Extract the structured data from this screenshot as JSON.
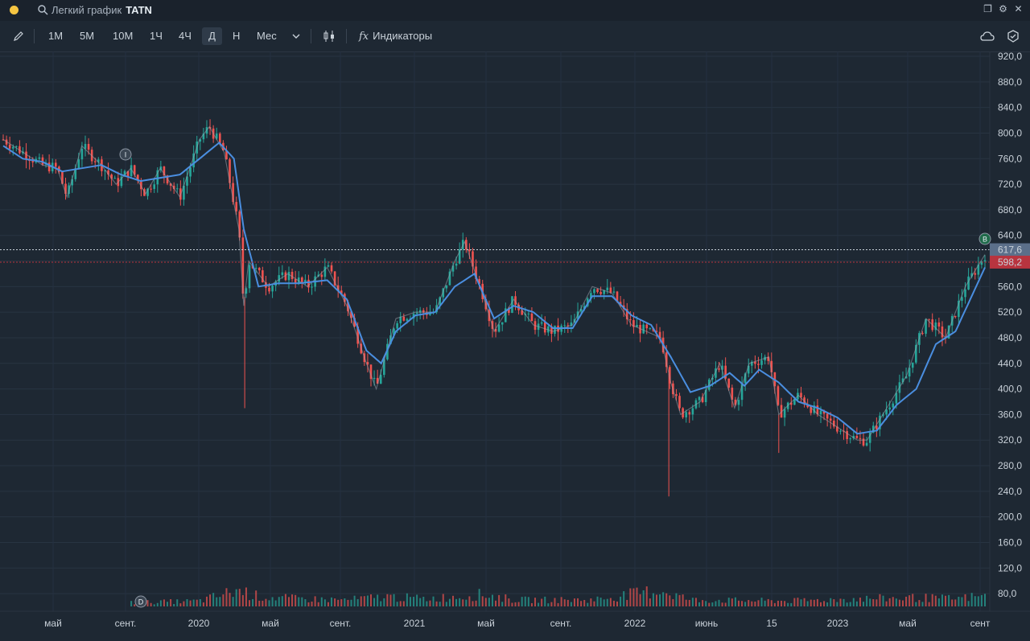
{
  "titlebar": {
    "title": "Легкий график",
    "ticker": "TATN",
    "dot_color": "#f5c542"
  },
  "toolbar": {
    "timeframes": [
      "1М",
      "5М",
      "10М",
      "1Ч",
      "4Ч",
      "Д",
      "Н",
      "Мес"
    ],
    "active_timeframe": "Д",
    "indicators_label": "Индикаторы",
    "fx_label": "fx"
  },
  "chart_data": {
    "type": "candlestick",
    "ticker": "TATN",
    "y_ticks": [
      "920,0",
      "880,0",
      "840,0",
      "800,0",
      "760,0",
      "720,0",
      "680,0",
      "640,0",
      "600,0",
      "560,0",
      "520,0",
      "480,0",
      "440,0",
      "400,0",
      "360,0",
      "320,0",
      "280,0",
      "240,0",
      "200,0",
      "160,0",
      "120,0",
      "80,0"
    ],
    "y_range": [
      60,
      920
    ],
    "x_ticks": [
      "май",
      "сент.",
      "2020",
      "май",
      "сент.",
      "2021",
      "май",
      "сент.",
      "2022",
      "июнь",
      "15",
      "2023",
      "май",
      "сент"
    ],
    "price_series": [
      [
        0,
        790
      ],
      [
        0.02,
        770
      ],
      [
        0.04,
        750
      ],
      [
        0.055,
        745
      ],
      [
        0.065,
        700
      ],
      [
        0.08,
        780
      ],
      [
        0.1,
        750
      ],
      [
        0.115,
        720
      ],
      [
        0.13,
        745
      ],
      [
        0.145,
        705
      ],
      [
        0.16,
        745
      ],
      [
        0.18,
        700
      ],
      [
        0.2,
        790
      ],
      [
        0.21,
        810
      ],
      [
        0.225,
        770
      ],
      [
        0.24,
        650
      ],
      [
        0.245,
        530
      ],
      [
        0.25,
        600
      ],
      [
        0.27,
        560
      ],
      [
        0.29,
        580
      ],
      [
        0.31,
        560
      ],
      [
        0.33,
        590
      ],
      [
        0.35,
        530
      ],
      [
        0.37,
        440
      ],
      [
        0.38,
        400
      ],
      [
        0.4,
        510
      ],
      [
        0.42,
        520
      ],
      [
        0.44,
        520
      ],
      [
        0.46,
        600
      ],
      [
        0.47,
        630
      ],
      [
        0.49,
        540
      ],
      [
        0.5,
        490
      ],
      [
        0.52,
        540
      ],
      [
        0.54,
        500
      ],
      [
        0.56,
        490
      ],
      [
        0.58,
        500
      ],
      [
        0.6,
        560
      ],
      [
        0.62,
        550
      ],
      [
        0.64,
        500
      ],
      [
        0.655,
        490
      ],
      [
        0.67,
        480
      ],
      [
        0.68,
        410
      ],
      [
        0.69,
        360
      ],
      [
        0.71,
        380
      ],
      [
        0.73,
        440
      ],
      [
        0.745,
        370
      ],
      [
        0.76,
        440
      ],
      [
        0.78,
        450
      ],
      [
        0.79,
        360
      ],
      [
        0.81,
        390
      ],
      [
        0.83,
        360
      ],
      [
        0.85,
        340
      ],
      [
        0.87,
        320
      ],
      [
        0.88,
        320
      ],
      [
        0.9,
        370
      ],
      [
        0.92,
        420
      ],
      [
        0.94,
        510
      ],
      [
        0.96,
        480
      ],
      [
        0.98,
        560
      ],
      [
        1.0,
        610
      ]
    ],
    "ma_series": [
      [
        0,
        780
      ],
      [
        0.02,
        760
      ],
      [
        0.04,
        755
      ],
      [
        0.06,
        740
      ],
      [
        0.08,
        745
      ],
      [
        0.1,
        750
      ],
      [
        0.12,
        735
      ],
      [
        0.14,
        725
      ],
      [
        0.16,
        730
      ],
      [
        0.18,
        735
      ],
      [
        0.2,
        760
      ],
      [
        0.22,
        785
      ],
      [
        0.235,
        760
      ],
      [
        0.245,
        650
      ],
      [
        0.26,
        560
      ],
      [
        0.28,
        565
      ],
      [
        0.3,
        565
      ],
      [
        0.33,
        570
      ],
      [
        0.35,
        540
      ],
      [
        0.37,
        460
      ],
      [
        0.385,
        440
      ],
      [
        0.4,
        490
      ],
      [
        0.42,
        515
      ],
      [
        0.44,
        520
      ],
      [
        0.46,
        560
      ],
      [
        0.48,
        580
      ],
      [
        0.5,
        510
      ],
      [
        0.52,
        530
      ],
      [
        0.54,
        520
      ],
      [
        0.56,
        495
      ],
      [
        0.58,
        495
      ],
      [
        0.6,
        545
      ],
      [
        0.62,
        545
      ],
      [
        0.64,
        515
      ],
      [
        0.66,
        500
      ],
      [
        0.68,
        450
      ],
      [
        0.7,
        395
      ],
      [
        0.72,
        405
      ],
      [
        0.74,
        425
      ],
      [
        0.755,
        405
      ],
      [
        0.77,
        430
      ],
      [
        0.79,
        410
      ],
      [
        0.81,
        380
      ],
      [
        0.83,
        370
      ],
      [
        0.85,
        355
      ],
      [
        0.87,
        330
      ],
      [
        0.89,
        335
      ],
      [
        0.91,
        375
      ],
      [
        0.93,
        400
      ],
      [
        0.95,
        470
      ],
      [
        0.97,
        490
      ],
      [
        0.985,
        540
      ],
      [
        1.0,
        590
      ]
    ],
    "volume_series": [
      [
        0.13,
        7
      ],
      [
        0.15,
        8
      ],
      [
        0.2,
        10
      ],
      [
        0.24,
        30
      ],
      [
        0.26,
        18
      ],
      [
        0.3,
        14
      ],
      [
        0.35,
        12
      ],
      [
        0.39,
        18
      ],
      [
        0.43,
        14
      ],
      [
        0.49,
        22
      ],
      [
        0.52,
        12
      ],
      [
        0.6,
        12
      ],
      [
        0.67,
        30
      ],
      [
        0.7,
        12
      ],
      [
        0.8,
        10
      ],
      [
        0.87,
        14
      ],
      [
        0.93,
        16
      ],
      [
        0.97,
        14
      ],
      [
        0.99,
        18
      ]
    ],
    "last_price": "617,6",
    "last_price_color": "#5b6f8a",
    "current_price": "598,2",
    "current_price_color": "#b8343f",
    "ma_color": "#4a8ee0",
    "up_color": "#26a69a",
    "down_color": "#ef5350",
    "markers": [
      "I",
      "D",
      "B"
    ]
  }
}
